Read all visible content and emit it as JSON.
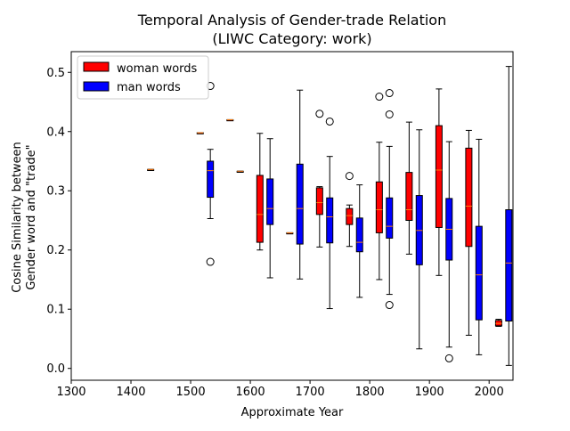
{
  "chart_data": {
    "type": "box",
    "title_line1": "Temporal Analysis of Gender-trade Relation",
    "title_line2": "(LIWC Category: work)",
    "xlabel": "Approximate Year",
    "ylabel_line1": "Cosine Similarity between",
    "ylabel_line2": "Gender word and \"trade\"",
    "xlim": [
      1300,
      2040
    ],
    "ylim": [
      -0.02,
      0.535
    ],
    "xticks": [
      "1300",
      "1400",
      "1500",
      "1600",
      "1700",
      "1800",
      "1900",
      "2000"
    ],
    "yticks": [
      "0.0",
      "0.1",
      "0.2",
      "0.3",
      "0.4",
      "0.5"
    ],
    "legend": [
      {
        "label": "woman words",
        "color": "#ff0000"
      },
      {
        "label": "man words",
        "color": "#0000ff"
      }
    ],
    "legend_position": "top-left",
    "median_color": "#ff7f0e",
    "series": [
      {
        "name": "woman words",
        "color": "#ff0000",
        "boxes": [
          {
            "x": 1433,
            "whislo": 0.336,
            "q1": 0.336,
            "med": 0.336,
            "q3": 0.336,
            "whishi": 0.336,
            "fliers": []
          },
          {
            "x": 1516,
            "whislo": 0.398,
            "q1": 0.398,
            "med": 0.398,
            "q3": 0.398,
            "whishi": 0.398,
            "fliers": []
          },
          {
            "x": 1566,
            "whislo": 0.42,
            "q1": 0.42,
            "med": 0.42,
            "q3": 0.42,
            "whishi": 0.42,
            "fliers": []
          },
          {
            "x": 1616,
            "whislo": 0.2,
            "q1": 0.213,
            "med": 0.26,
            "q3": 0.326,
            "whishi": 0.397,
            "fliers": []
          },
          {
            "x": 1666,
            "whislo": 0.229,
            "q1": 0.229,
            "med": 0.229,
            "q3": 0.229,
            "whishi": 0.229,
            "fliers": []
          },
          {
            "x": 1716,
            "whislo": 0.205,
            "q1": 0.26,
            "med": 0.28,
            "q3": 0.305,
            "whishi": 0.307,
            "fliers": [
              0.43
            ]
          },
          {
            "x": 1766,
            "whislo": 0.206,
            "q1": 0.243,
            "med": 0.258,
            "q3": 0.27,
            "whishi": 0.276,
            "fliers": [
              0.325
            ]
          },
          {
            "x": 1816,
            "whislo": 0.15,
            "q1": 0.229,
            "med": 0.268,
            "q3": 0.315,
            "whishi": 0.382,
            "fliers": [
              0.459
            ]
          },
          {
            "x": 1866,
            "whislo": 0.193,
            "q1": 0.25,
            "med": 0.268,
            "q3": 0.331,
            "whishi": 0.416,
            "fliers": []
          },
          {
            "x": 1916,
            "whislo": 0.157,
            "q1": 0.238,
            "med": 0.335,
            "q3": 0.41,
            "whishi": 0.472,
            "fliers": []
          },
          {
            "x": 1966,
            "whislo": 0.056,
            "q1": 0.206,
            "med": 0.274,
            "q3": 0.372,
            "whishi": 0.402,
            "fliers": []
          },
          {
            "x": 2016,
            "whislo": 0.071,
            "q1": 0.072,
            "med": 0.076,
            "q3": 0.081,
            "whishi": 0.083,
            "fliers": []
          }
        ]
      },
      {
        "name": "man words",
        "color": "#0000ff",
        "boxes": [
          {
            "x": 1533,
            "whislo": 0.253,
            "q1": 0.289,
            "med": 0.334,
            "q3": 0.35,
            "whishi": 0.37,
            "fliers": [
              0.477,
              0.18
            ]
          },
          {
            "x": 1583,
            "whislo": 0.333,
            "q1": 0.333,
            "med": 0.333,
            "q3": 0.333,
            "whishi": 0.333,
            "fliers": []
          },
          {
            "x": 1633,
            "whislo": 0.153,
            "q1": 0.243,
            "med": 0.27,
            "q3": 0.32,
            "whishi": 0.388,
            "fliers": []
          },
          {
            "x": 1683,
            "whislo": 0.151,
            "q1": 0.21,
            "med": 0.27,
            "q3": 0.345,
            "whishi": 0.47,
            "fliers": []
          },
          {
            "x": 1733,
            "whislo": 0.101,
            "q1": 0.212,
            "med": 0.256,
            "q3": 0.288,
            "whishi": 0.358,
            "fliers": [
              0.417
            ]
          },
          {
            "x": 1783,
            "whislo": 0.12,
            "q1": 0.197,
            "med": 0.213,
            "q3": 0.254,
            "whishi": 0.31,
            "fliers": []
          },
          {
            "x": 1833,
            "whislo": 0.125,
            "q1": 0.22,
            "med": 0.24,
            "q3": 0.288,
            "whishi": 0.375,
            "fliers": [
              0.465,
              0.429,
              0.107
            ]
          },
          {
            "x": 1883,
            "whislo": 0.033,
            "q1": 0.175,
            "med": 0.233,
            "q3": 0.292,
            "whishi": 0.403,
            "fliers": []
          },
          {
            "x": 1933,
            "whislo": 0.036,
            "q1": 0.183,
            "med": 0.235,
            "q3": 0.287,
            "whishi": 0.383,
            "fliers": [
              0.017
            ]
          },
          {
            "x": 1983,
            "whislo": 0.023,
            "q1": 0.082,
            "med": 0.158,
            "q3": 0.24,
            "whishi": 0.387,
            "fliers": []
          },
          {
            "x": 2033,
            "whislo": 0.005,
            "q1": 0.08,
            "med": 0.178,
            "q3": 0.268,
            "whishi": 0.51,
            "fliers": []
          }
        ]
      }
    ]
  }
}
